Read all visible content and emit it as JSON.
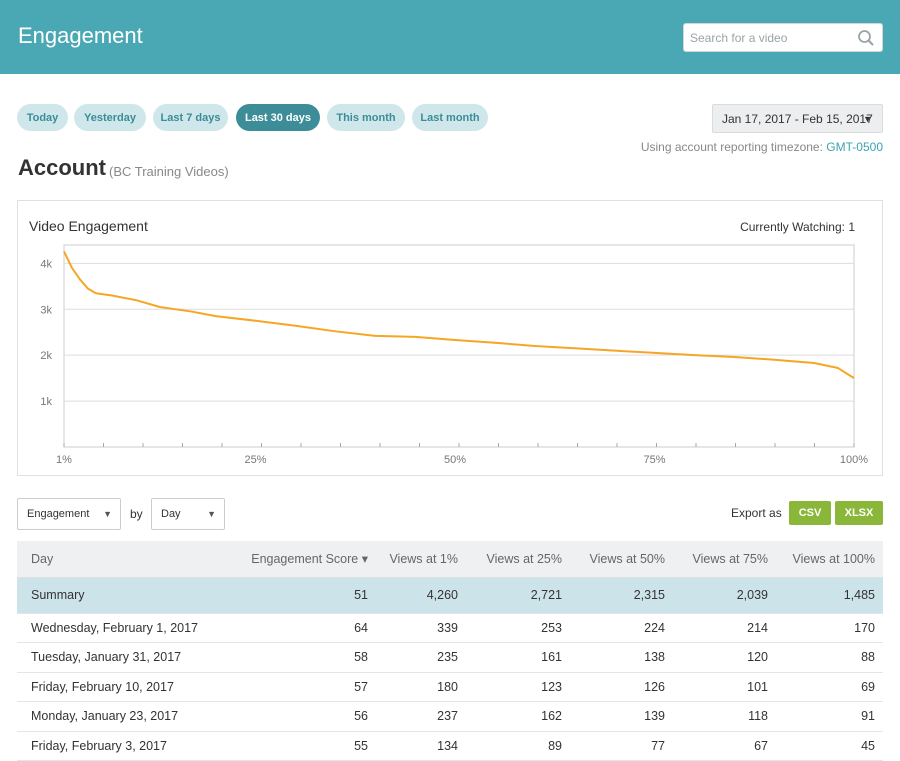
{
  "header": {
    "title": "Engagement",
    "search_placeholder": "Search for a video"
  },
  "presets": [
    "Today",
    "Yesterday",
    "Last 7 days",
    "Last 30 days",
    "This month",
    "Last month"
  ],
  "active_preset": "Last 30 days",
  "date_range": {
    "label": "Jan 17, 2017 - Feb 15, 2017"
  },
  "timezone": {
    "prefix": "Using account reporting timezone:",
    "value": "GMT-0500"
  },
  "account": {
    "title": "Account",
    "subtitle": "(BC Training Videos)"
  },
  "chart": {
    "title": "Video Engagement",
    "currently_watching": "Currently Watching: 1",
    "line_color": "#f6a623"
  },
  "chart_data": {
    "type": "line",
    "title": "Video Engagement",
    "xlabel": "",
    "ylabel": "",
    "xlim": [
      1,
      100
    ],
    "ylim": [
      0,
      4400
    ],
    "x_tick_labels": [
      "1%",
      "25%",
      "50%",
      "75%",
      "100%"
    ],
    "y_tick_labels": [
      "1k",
      "2k",
      "3k",
      "4k"
    ],
    "grid": true,
    "series": [
      {
        "x": [
          1,
          2,
          3,
          4,
          5,
          7,
          10,
          13,
          17,
          20,
          25,
          30,
          35,
          40,
          45,
          50,
          55,
          60,
          65,
          70,
          75,
          80,
          85,
          90,
          95,
          98,
          100
        ],
        "y": [
          4260,
          3900,
          3650,
          3450,
          3350,
          3300,
          3200,
          3050,
          2950,
          2850,
          2750,
          2640,
          2520,
          2420,
          2400,
          2330,
          2270,
          2200,
          2150,
          2100,
          2050,
          2000,
          1960,
          1900,
          1830,
          1720,
          1500
        ]
      }
    ]
  },
  "controls": {
    "metric_select": "Engagement",
    "by_label": "by",
    "period_select": "Day",
    "export_label": "Export as",
    "csv": "CSV",
    "xlsx": "XLSX"
  },
  "table": {
    "headers": [
      "Day",
      "Engagement Score ▾",
      "Views at 1%",
      "Views at 25%",
      "Views at 50%",
      "Views at 75%",
      "Views at 100%"
    ],
    "summary": [
      "Summary",
      "51",
      "4,260",
      "2,721",
      "2,315",
      "2,039",
      "1,485"
    ],
    "rows": [
      [
        "Wednesday, February 1, 2017",
        "64",
        "339",
        "253",
        "224",
        "214",
        "170"
      ],
      [
        "Tuesday, January 31, 2017",
        "58",
        "235",
        "161",
        "138",
        "120",
        "88"
      ],
      [
        "Friday, February 10, 2017",
        "57",
        "180",
        "123",
        "126",
        "101",
        "69"
      ],
      [
        "Monday, January 23, 2017",
        "56",
        "237",
        "162",
        "139",
        "118",
        "91"
      ],
      [
        "Friday, February 3, 2017",
        "55",
        "134",
        "89",
        "77",
        "67",
        "45"
      ]
    ]
  }
}
